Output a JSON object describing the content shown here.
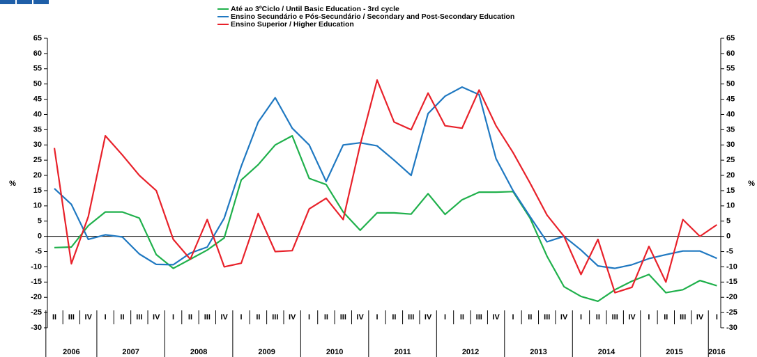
{
  "chart_data": {
    "type": "line",
    "categories": [
      "II",
      "III",
      "IV",
      "I",
      "II",
      "III",
      "IV",
      "I",
      "II",
      "III",
      "IV",
      "I",
      "II",
      "III",
      "IV",
      "I",
      "II",
      "III",
      "IV",
      "I",
      "II",
      "III",
      "IV",
      "I",
      "II",
      "III",
      "IV",
      "I",
      "II",
      "III",
      "IV",
      "I",
      "II",
      "III",
      "IV",
      "I",
      "II",
      "III",
      "IV",
      "I"
    ],
    "years": [
      "2006",
      "2007",
      "2008",
      "2009",
      "2010",
      "2011",
      "2012",
      "2013",
      "2014",
      "2015",
      "2016"
    ],
    "y_label": "%",
    "ylim": [
      -30,
      65
    ],
    "yticks": [
      -30,
      -25,
      -20,
      -15,
      -10,
      -5,
      0,
      5,
      10,
      15,
      20,
      25,
      30,
      35,
      40,
      45,
      50,
      55,
      60,
      65
    ],
    "series": [
      {
        "name": "Até ao 3ºCiclo / Until Basic Education - 3rd cycle",
        "color": "#1fb04b",
        "values": [
          -3.7,
          -3.5,
          3.5,
          8,
          8,
          6,
          -6,
          -10.5,
          -7.5,
          -4.5,
          -0.5,
          18.5,
          23.5,
          30,
          33,
          19,
          17,
          8,
          2,
          7.7,
          7.7,
          7.3,
          14,
          7.2,
          12,
          14.5,
          14.5,
          14.7,
          6,
          -6.5,
          -16.5,
          -19.7,
          -21.3,
          -17.5,
          -14.7,
          -12.5,
          -18.5,
          -17.5,
          -14.5,
          -16.2
        ]
      },
      {
        "name": "Ensino Secundário e Pós-Secundário / Secondary and Post-Secondary Education",
        "color": "#1f78c1",
        "values": [
          15.7,
          10.5,
          -1,
          0.5,
          -0.2,
          -5.8,
          -9.2,
          -9.3,
          -5.5,
          -3.5,
          6,
          23,
          37.5,
          45.5,
          35.5,
          30,
          18,
          30,
          30.7,
          29.7,
          25,
          20,
          40.3,
          46,
          49,
          46.5,
          25.5,
          15,
          6.5,
          -1.8,
          0,
          -4.5,
          -9.7,
          -10.5,
          -9.3,
          -7.3,
          -6,
          -4.8,
          -4.8,
          -7.2
        ]
      },
      {
        "name": "Ensino Superior / Higher Education",
        "color": "#e8212a",
        "values": [
          29,
          -9,
          6.5,
          33,
          26.7,
          20,
          15,
          -1,
          -7.5,
          5.5,
          -10,
          -8.8,
          7.5,
          -5,
          -4.7,
          9,
          12.5,
          5.5,
          30,
          51.3,
          37.5,
          35,
          47,
          36.3,
          35.5,
          48,
          36.3,
          27.5,
          17.5,
          7,
          0,
          -12.5,
          -1,
          -18.5,
          -16.7,
          -3.3,
          -15,
          5.5,
          0,
          3.8
        ]
      }
    ]
  }
}
